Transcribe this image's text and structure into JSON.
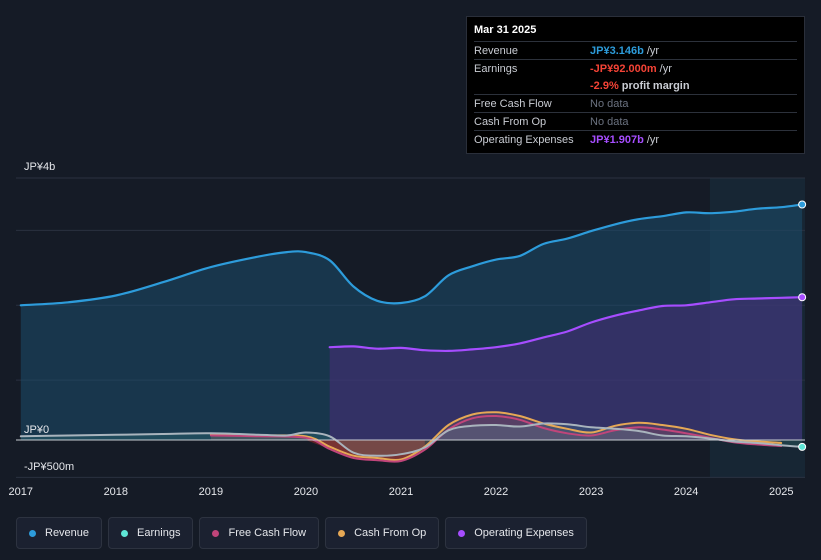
{
  "colors": {
    "revenue": "#2d9cdb",
    "earnings": "#5ee6d6",
    "fcf": "#c0457a",
    "cfo": "#e6a855",
    "opex": "#a64dff",
    "loss": "#e03131",
    "profit_red": "#f44336"
  },
  "tooltip": {
    "date": "Mar 31 2025",
    "rows": [
      {
        "label": "Revenue",
        "value": "JP¥3.146b",
        "suffix": "/yr"
      },
      {
        "label": "Earnings",
        "value": "-JP¥92.000m",
        "suffix": "/yr"
      },
      {
        "label": "",
        "value": "-2.9%",
        "suffix": "profit margin"
      },
      {
        "label": "Free Cash Flow",
        "value": "No data",
        "suffix": ""
      },
      {
        "label": "Cash From Op",
        "value": "No data",
        "suffix": ""
      },
      {
        "label": "Operating Expenses",
        "value": "JP¥1.907b",
        "suffix": "/yr"
      }
    ]
  },
  "legend": [
    {
      "label": "Revenue",
      "icon": "revenue-dot-icon"
    },
    {
      "label": "Earnings",
      "icon": "earnings-dot-icon"
    },
    {
      "label": "Free Cash Flow",
      "icon": "fcf-dot-icon"
    },
    {
      "label": "Cash From Op",
      "icon": "cfo-dot-icon"
    },
    {
      "label": "Operating Expenses",
      "icon": "opex-dot-icon"
    }
  ],
  "chart_data": {
    "type": "area",
    "title": "",
    "xlabel": "",
    "ylabel": "",
    "y_unit": "JP¥ billions",
    "y_axis_labels": [
      {
        "label": "JP¥4b",
        "value": 3.5
      },
      {
        "label": "JP¥0",
        "value": 0
      },
      {
        "label": "-JP¥500m",
        "value": -0.5
      }
    ],
    "ylim": [
      -0.5,
      3.5
    ],
    "xlim": [
      2016.95,
      2025.25
    ],
    "x_ticks": [
      "2017",
      "2018",
      "2019",
      "2020",
      "2021",
      "2022",
      "2023",
      "2024",
      "2025"
    ],
    "x_tick_values": [
      2017,
      2018,
      2019,
      2020,
      2021,
      2022,
      2023,
      2024,
      2025
    ],
    "highlight_start": 2024.25,
    "series": [
      {
        "name": "Revenue",
        "key": "revenue",
        "points": [
          [
            2017,
            1.8
          ],
          [
            2017.5,
            1.84
          ],
          [
            2018,
            1.93
          ],
          [
            2018.5,
            2.11
          ],
          [
            2019,
            2.31
          ],
          [
            2019.5,
            2.45
          ],
          [
            2019.8,
            2.51
          ],
          [
            2020,
            2.51
          ],
          [
            2020.25,
            2.4
          ],
          [
            2020.5,
            2.05
          ],
          [
            2020.75,
            1.86
          ],
          [
            2021,
            1.83
          ],
          [
            2021.25,
            1.92
          ],
          [
            2021.5,
            2.2
          ],
          [
            2021.75,
            2.32
          ],
          [
            2022,
            2.41
          ],
          [
            2022.25,
            2.46
          ],
          [
            2022.5,
            2.62
          ],
          [
            2022.75,
            2.69
          ],
          [
            2023,
            2.79
          ],
          [
            2023.25,
            2.88
          ],
          [
            2023.5,
            2.95
          ],
          [
            2023.75,
            2.99
          ],
          [
            2024,
            3.04
          ],
          [
            2024.25,
            3.03
          ],
          [
            2024.5,
            3.05
          ],
          [
            2024.75,
            3.09
          ],
          [
            2025,
            3.11
          ],
          [
            2025.22,
            3.146
          ]
        ]
      },
      {
        "name": "Earnings",
        "key": "earnings",
        "points": [
          [
            2017,
            0.05
          ],
          [
            2017.5,
            0.06
          ],
          [
            2018,
            0.07
          ],
          [
            2018.5,
            0.08
          ],
          [
            2019,
            0.09
          ],
          [
            2019.5,
            0.07
          ],
          [
            2019.8,
            0.06
          ],
          [
            2020,
            0.1
          ],
          [
            2020.25,
            0.05
          ],
          [
            2020.5,
            -0.17
          ],
          [
            2020.75,
            -0.21
          ],
          [
            2021,
            -0.19
          ],
          [
            2021.25,
            -0.1
          ],
          [
            2021.5,
            0.13
          ],
          [
            2021.75,
            0.19
          ],
          [
            2022,
            0.2
          ],
          [
            2022.25,
            0.18
          ],
          [
            2022.5,
            0.22
          ],
          [
            2022.75,
            0.21
          ],
          [
            2023,
            0.17
          ],
          [
            2023.25,
            0.15
          ],
          [
            2023.5,
            0.12
          ],
          [
            2023.75,
            0.06
          ],
          [
            2024,
            0.05
          ],
          [
            2024.25,
            0.02
          ],
          [
            2024.5,
            -0.02
          ],
          [
            2024.75,
            -0.04
          ],
          [
            2025,
            -0.07
          ],
          [
            2025.22,
            -0.092
          ]
        ]
      },
      {
        "name": "Free Cash Flow",
        "key": "fcf",
        "points": [
          [
            2019,
            0.06
          ],
          [
            2019.5,
            0.05
          ],
          [
            2020,
            0.03
          ],
          [
            2020.25,
            -0.12
          ],
          [
            2020.5,
            -0.24
          ],
          [
            2020.75,
            -0.27
          ],
          [
            2021,
            -0.28
          ],
          [
            2021.25,
            -0.13
          ],
          [
            2021.5,
            0.14
          ],
          [
            2021.75,
            0.29
          ],
          [
            2022,
            0.32
          ],
          [
            2022.25,
            0.27
          ],
          [
            2022.5,
            0.16
          ],
          [
            2022.75,
            0.09
          ],
          [
            2023,
            0.06
          ],
          [
            2023.25,
            0.13
          ],
          [
            2023.5,
            0.17
          ],
          [
            2023.75,
            0.14
          ],
          [
            2024,
            0.09
          ],
          [
            2024.25,
            0.03
          ],
          [
            2024.5,
            -0.03
          ],
          [
            2024.75,
            -0.06
          ],
          [
            2025,
            -0.08
          ]
        ]
      },
      {
        "name": "Cash From Op",
        "key": "cfo",
        "points": [
          [
            2019,
            0.07
          ],
          [
            2019.5,
            0.06
          ],
          [
            2020,
            0.05
          ],
          [
            2020.25,
            -0.09
          ],
          [
            2020.5,
            -0.21
          ],
          [
            2020.75,
            -0.24
          ],
          [
            2021,
            -0.26
          ],
          [
            2021.25,
            -0.09
          ],
          [
            2021.5,
            0.2
          ],
          [
            2021.75,
            0.34
          ],
          [
            2022,
            0.37
          ],
          [
            2022.25,
            0.32
          ],
          [
            2022.5,
            0.22
          ],
          [
            2022.75,
            0.15
          ],
          [
            2023,
            0.1
          ],
          [
            2023.25,
            0.19
          ],
          [
            2023.5,
            0.23
          ],
          [
            2023.75,
            0.2
          ],
          [
            2024,
            0.15
          ],
          [
            2024.25,
            0.07
          ],
          [
            2024.5,
            0.01
          ],
          [
            2024.75,
            -0.02
          ],
          [
            2025,
            -0.04
          ]
        ]
      },
      {
        "name": "Operating Expenses",
        "key": "opex",
        "points": [
          [
            2020.25,
            1.24
          ],
          [
            2020.5,
            1.25
          ],
          [
            2020.75,
            1.22
          ],
          [
            2021,
            1.23
          ],
          [
            2021.25,
            1.2
          ],
          [
            2021.5,
            1.19
          ],
          [
            2021.75,
            1.21
          ],
          [
            2022,
            1.24
          ],
          [
            2022.25,
            1.29
          ],
          [
            2022.5,
            1.37
          ],
          [
            2022.75,
            1.45
          ],
          [
            2023,
            1.57
          ],
          [
            2023.25,
            1.66
          ],
          [
            2023.5,
            1.73
          ],
          [
            2023.75,
            1.79
          ],
          [
            2024,
            1.8
          ],
          [
            2024.25,
            1.84
          ],
          [
            2024.5,
            1.88
          ],
          [
            2024.75,
            1.89
          ],
          [
            2025,
            1.9
          ],
          [
            2025.22,
            1.907
          ]
        ]
      }
    ]
  }
}
